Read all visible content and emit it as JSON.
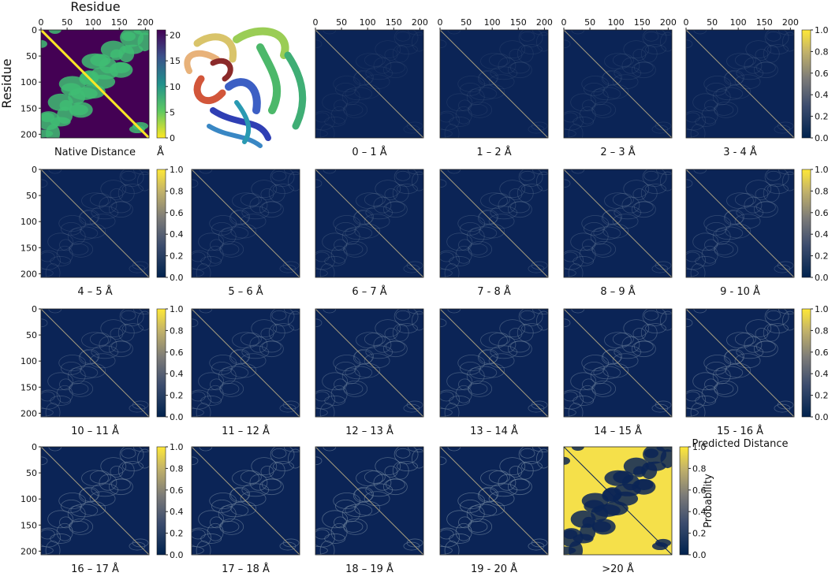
{
  "native": {
    "title": "Residue",
    "y_label": "Residue",
    "caption": "Native Distance",
    "colorbar_label": "Å"
  },
  "axis": {
    "lim": [
      0,
      207
    ],
    "ticks": [
      0,
      50,
      100,
      150,
      200
    ]
  },
  "native_colorbar": {
    "lim": [
      0,
      21
    ],
    "ticks": [
      0,
      5,
      10,
      15,
      20
    ]
  },
  "probability_colorbar": {
    "lim": [
      0,
      1
    ],
    "label": "Probability",
    "ticks": [
      {
        "value": 0,
        "label": "0.0"
      },
      {
        "value": 0.2,
        "label": "0.2"
      },
      {
        "value": 0.4,
        "label": "0.4"
      },
      {
        "value": 0.6,
        "label": "0.6"
      },
      {
        "value": 0.8,
        "label": "0.8"
      },
      {
        "value": 1,
        "label": "1.0"
      }
    ]
  },
  "panels": [
    "0 – 1 Å",
    "1 – 2 Å",
    "2 – 3 Å",
    "3 - 4 Å",
    "4 – 5 Å",
    "5 – 6 Å",
    "6 – 7 Å",
    "7 - 8 Å",
    "8 – 9 Å",
    "9 - 10 Å",
    "10 – 11 Å",
    "11 – 12 Å",
    "12 – 13 Å",
    "13 – 14 Å",
    "14 – 15 Å",
    "15 - 16 Å",
    "16 – 17 Å",
    "17 – 18 Å",
    "18 – 19 Å",
    "19 - 20 Å",
    ">20 Å"
  ],
  "predicted_caption": "Predicted Distance"
}
